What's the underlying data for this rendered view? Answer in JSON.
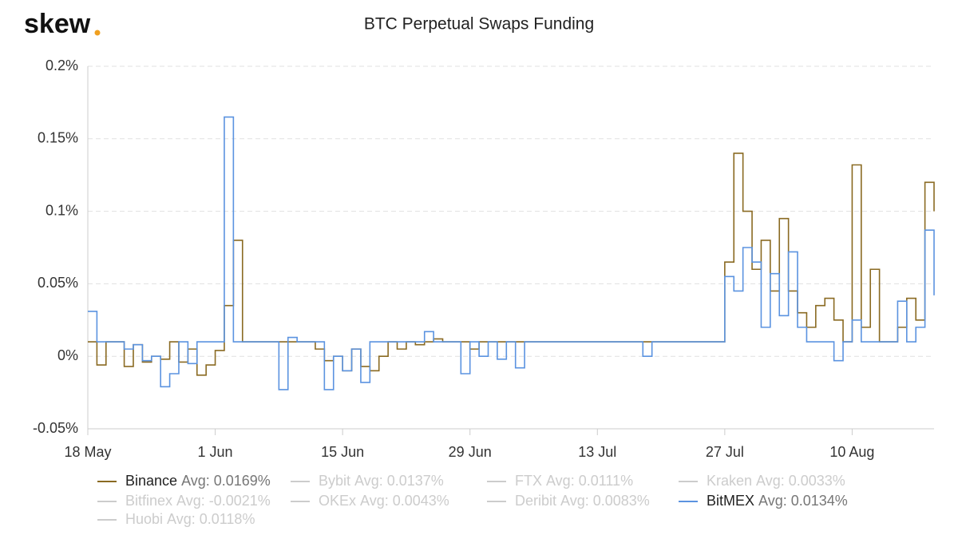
{
  "chart_data": {
    "type": "step-line",
    "logo": "skew",
    "title": "BTC Perpetual Swaps Funding",
    "x": [
      0,
      1,
      2,
      3,
      4,
      5,
      6,
      7,
      8,
      9,
      10,
      11,
      12,
      13,
      14,
      15,
      16,
      17,
      18,
      19,
      20,
      21,
      22,
      23,
      24,
      25,
      26,
      27,
      28,
      29,
      30,
      31,
      32,
      33,
      34,
      35,
      36,
      37,
      38,
      39,
      40,
      41,
      42,
      43,
      44,
      45,
      46,
      47,
      48,
      49,
      50,
      51,
      52,
      53,
      54,
      55,
      56,
      57,
      58,
      59,
      60,
      61,
      62,
      63,
      64,
      65,
      66,
      67,
      68,
      69,
      70,
      71,
      72,
      73,
      74,
      75,
      76,
      77,
      78,
      79,
      80,
      81,
      82,
      83,
      84,
      85,
      86,
      87,
      88,
      89,
      90,
      91,
      92,
      93
    ],
    "xlim": [
      0,
      93
    ],
    "xticks": [
      {
        "value": 0,
        "label": "18 May"
      },
      {
        "value": 14,
        "label": "1 Jun"
      },
      {
        "value": 28,
        "label": "15 Jun"
      },
      {
        "value": 42,
        "label": "29 Jun"
      },
      {
        "value": 56,
        "label": "13 Jul"
      },
      {
        "value": 70,
        "label": "27 Jul"
      },
      {
        "value": 84,
        "label": "10 Aug"
      }
    ],
    "ylim": [
      -0.05,
      0.2
    ],
    "yticks": [
      {
        "value": -0.05,
        "label": "-0.05%"
      },
      {
        "value": 0,
        "label": "0%"
      },
      {
        "value": 0.05,
        "label": "0.05%"
      },
      {
        "value": 0.1,
        "label": "0.1%"
      },
      {
        "value": 0.15,
        "label": "0.15%"
      },
      {
        "value": 0.2,
        "label": "0.2%"
      }
    ],
    "grid": true,
    "series": [
      {
        "name": "Binance",
        "avg": "Avg: 0.0169%",
        "visible": true,
        "color": "#8a6a22",
        "values": [
          0.01,
          -0.006,
          0.01,
          0.01,
          -0.007,
          0.008,
          -0.004,
          0.0,
          -0.002,
          0.01,
          -0.004,
          0.005,
          -0.013,
          -0.006,
          0.004,
          0.035,
          0.08,
          0.01,
          0.01,
          0.01,
          0.01,
          0.01,
          0.01,
          0.01,
          0.01,
          0.005,
          -0.003,
          0.0,
          -0.01,
          0.005,
          -0.007,
          -0.01,
          0.0,
          0.01,
          0.005,
          0.01,
          0.008,
          0.01,
          0.012,
          0.01,
          0.01,
          0.01,
          0.005,
          0.01,
          0.01,
          0.01,
          0.01,
          0.01,
          0.01,
          0.01,
          0.01,
          0.01,
          0.01,
          0.01,
          0.01,
          0.01,
          0.01,
          0.01,
          0.01,
          0.01,
          0.01,
          0.01,
          0.01,
          0.01,
          0.01,
          0.01,
          0.01,
          0.01,
          0.01,
          0.01,
          0.065,
          0.14,
          0.1,
          0.06,
          0.08,
          0.045,
          0.095,
          0.045,
          0.03,
          0.02,
          0.035,
          0.04,
          0.025,
          0.01,
          0.132,
          0.02,
          0.06,
          0.01,
          0.01,
          0.02,
          0.04,
          0.025,
          0.12,
          0.1
        ]
      },
      {
        "name": "Bybit",
        "avg": "Avg: 0.0137%",
        "visible": false,
        "color": "#cccccc"
      },
      {
        "name": "FTX",
        "avg": "Avg: 0.0111%",
        "visible": false,
        "color": "#cccccc"
      },
      {
        "name": "Kraken",
        "avg": "Avg: 0.0033%",
        "visible": false,
        "color": "#cccccc"
      },
      {
        "name": "Bitfinex",
        "avg": "Avg: -0.0021%",
        "visible": false,
        "color": "#cccccc"
      },
      {
        "name": "OKEx",
        "avg": "Avg: 0.0043%",
        "visible": false,
        "color": "#cccccc"
      },
      {
        "name": "Deribit",
        "avg": "Avg: 0.0083%",
        "visible": false,
        "color": "#cccccc"
      },
      {
        "name": "BitMEX",
        "avg": "Avg: 0.0134%",
        "visible": true,
        "color": "#5b93e0",
        "values": [
          0.031,
          0.01,
          0.01,
          0.01,
          0.005,
          0.008,
          -0.003,
          0.0,
          -0.021,
          -0.012,
          0.01,
          -0.005,
          0.01,
          0.01,
          0.01,
          0.165,
          0.01,
          0.01,
          0.01,
          0.01,
          0.01,
          -0.023,
          0.013,
          0.01,
          0.01,
          0.01,
          -0.023,
          0.0,
          -0.01,
          0.005,
          -0.018,
          0.01,
          0.01,
          0.01,
          0.01,
          0.01,
          0.01,
          0.017,
          0.01,
          0.01,
          0.01,
          -0.012,
          0.01,
          0.0,
          0.01,
          -0.002,
          0.01,
          -0.008,
          0.01,
          0.01,
          0.01,
          0.01,
          0.01,
          0.01,
          0.01,
          0.01,
          0.01,
          0.01,
          0.01,
          0.01,
          0.01,
          0.0,
          0.01,
          0.01,
          0.01,
          0.01,
          0.01,
          0.01,
          0.01,
          0.01,
          0.055,
          0.045,
          0.075,
          0.065,
          0.02,
          0.057,
          0.028,
          0.072,
          0.02,
          0.01,
          0.01,
          0.01,
          -0.003,
          0.01,
          0.025,
          0.01,
          0.01,
          0.01,
          0.01,
          0.038,
          0.01,
          0.02,
          0.087,
          0.042
        ]
      },
      {
        "name": "Huobi",
        "avg": "Avg: 0.0118%",
        "visible": false,
        "color": "#cccccc"
      }
    ]
  }
}
